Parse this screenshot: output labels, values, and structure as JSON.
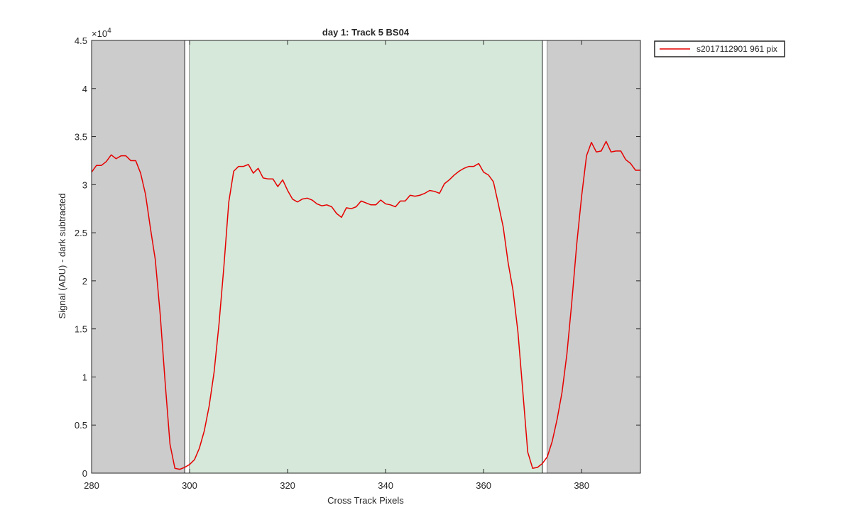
{
  "chart_data": {
    "type": "line",
    "title": "day 1: Track 5  BS04",
    "xlabel": "Cross Track Pixels",
    "ylabel": "Signal (ADU) - dark subtracted",
    "y_exponent_label": "×10",
    "y_exponent_power": "4",
    "xlim": [
      280,
      392
    ],
    "ylim": [
      0,
      45000
    ],
    "x_ticks": [
      280,
      300,
      320,
      340,
      360,
      380
    ],
    "y_ticks": [
      0,
      5000,
      10000,
      15000,
      20000,
      25000,
      30000,
      35000,
      40000,
      45000
    ],
    "y_tick_labels": [
      "0",
      "0.5",
      "1",
      "1.5",
      "2",
      "2.5",
      "3",
      "3.5",
      "4",
      "4.5"
    ],
    "grid": false,
    "legend_placement": "outside-top-right",
    "regions": [
      {
        "kind": "excluded",
        "x0": 280,
        "x1": 299,
        "color": "#cccccc"
      },
      {
        "kind": "marker",
        "x0": 299,
        "x1": 300,
        "color": "#ffffff"
      },
      {
        "kind": "valid",
        "x0": 300,
        "x1": 372,
        "color": "#d5e8d9"
      },
      {
        "kind": "marker",
        "x0": 372,
        "x1": 373,
        "color": "#ffffff"
      },
      {
        "kind": "excluded",
        "x0": 373,
        "x1": 392,
        "color": "#cccccc"
      }
    ],
    "series": [
      {
        "name": "s2017112901 961 pix",
        "color": "#e60000",
        "x": [
          280,
          281,
          282,
          283,
          284,
          285,
          286,
          287,
          288,
          289,
          290,
          291,
          292,
          293,
          294,
          295,
          296,
          297,
          298,
          299,
          300,
          301,
          302,
          303,
          304,
          305,
          306,
          307,
          308,
          309,
          310,
          311,
          312,
          313,
          314,
          315,
          316,
          317,
          318,
          319,
          320,
          321,
          322,
          323,
          324,
          325,
          326,
          327,
          328,
          329,
          330,
          331,
          332,
          333,
          334,
          335,
          336,
          337,
          338,
          339,
          340,
          341,
          342,
          343,
          344,
          345,
          346,
          347,
          348,
          349,
          350,
          351,
          352,
          353,
          354,
          355,
          356,
          357,
          358,
          359,
          360,
          361,
          362,
          363,
          364,
          365,
          366,
          367,
          368,
          369,
          370,
          371,
          372,
          373,
          374,
          375,
          376,
          377,
          378,
          379,
          380,
          381,
          382,
          383,
          384,
          385,
          386,
          387,
          388,
          389,
          390,
          391,
          392
        ],
        "y": [
          31300,
          32000,
          32000,
          32400,
          33100,
          32700,
          33000,
          33000,
          32500,
          32500,
          31200,
          29000,
          25500,
          22200,
          16500,
          9500,
          3000,
          500,
          400,
          600,
          900,
          1400,
          2600,
          4400,
          7000,
          10500,
          15500,
          21500,
          28200,
          31400,
          31900,
          31900,
          32100,
          31200,
          31700,
          30700,
          30600,
          30600,
          29800,
          30500,
          29400,
          28500,
          28200,
          28500,
          28600,
          28400,
          28000,
          27800,
          27900,
          27700,
          27000,
          26600,
          27600,
          27500,
          27700,
          28300,
          28100,
          27900,
          27900,
          28400,
          28000,
          27900,
          27700,
          28300,
          28300,
          28900,
          28800,
          28900,
          29100,
          29400,
          29300,
          29100,
          30100,
          30500,
          31000,
          31400,
          31700,
          31900,
          31900,
          32200,
          31300,
          31000,
          30300,
          28000,
          25600,
          21900,
          19000,
          14700,
          8500,
          2200,
          500,
          600,
          1000,
          1700,
          3300,
          5600,
          8400,
          12400,
          17800,
          23800,
          28800,
          33000,
          34400,
          33400,
          33500,
          34500,
          33400,
          33500,
          33500,
          32600,
          32200,
          31500,
          31500
        ]
      }
    ]
  }
}
